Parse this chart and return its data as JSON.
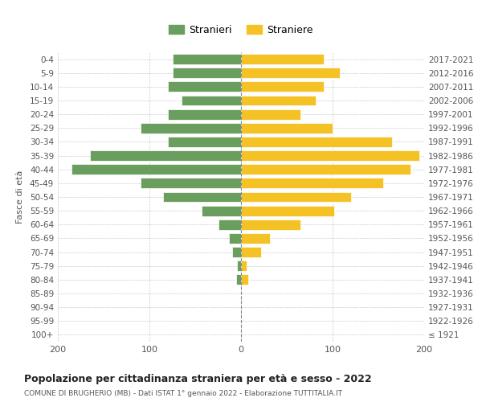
{
  "age_groups": [
    "100+",
    "95-99",
    "90-94",
    "85-89",
    "80-84",
    "75-79",
    "70-74",
    "65-69",
    "60-64",
    "55-59",
    "50-54",
    "45-49",
    "40-44",
    "35-39",
    "30-34",
    "25-29",
    "20-24",
    "15-19",
    "10-14",
    "5-9",
    "0-4"
  ],
  "birth_years": [
    "≤ 1921",
    "1922-1926",
    "1927-1931",
    "1932-1936",
    "1937-1941",
    "1942-1946",
    "1947-1951",
    "1952-1956",
    "1957-1961",
    "1962-1966",
    "1967-1971",
    "1972-1976",
    "1977-1981",
    "1982-1986",
    "1987-1991",
    "1992-1996",
    "1997-2001",
    "2002-2006",
    "2007-2011",
    "2012-2016",
    "2017-2021"
  ],
  "males": [
    0,
    0,
    0,
    0,
    5,
    4,
    10,
    13,
    25,
    43,
    85,
    110,
    185,
    165,
    80,
    110,
    80,
    65,
    80,
    75,
    75
  ],
  "females": [
    0,
    0,
    0,
    0,
    8,
    6,
    22,
    32,
    65,
    102,
    120,
    155,
    185,
    195,
    165,
    100,
    65,
    82,
    90,
    108,
    90
  ],
  "male_color": "#6a9e5e",
  "female_color": "#f5c226",
  "background_color": "#ffffff",
  "grid_color": "#cccccc",
  "title": "Popolazione per cittadinanza straniera per età e sesso - 2022",
  "subtitle": "COMUNE DI BRUGHERIO (MB) - Dati ISTAT 1° gennaio 2022 - Elaborazione TUTTITALIA.IT",
  "ylabel_left": "Fasce di età",
  "legend_male": "Stranieri",
  "legend_female": "Straniere",
  "xlim": 200,
  "xticks": [
    -200,
    -100,
    0,
    100,
    200
  ],
  "xtick_labels": [
    "200",
    "100",
    "0",
    "100",
    "200"
  ]
}
